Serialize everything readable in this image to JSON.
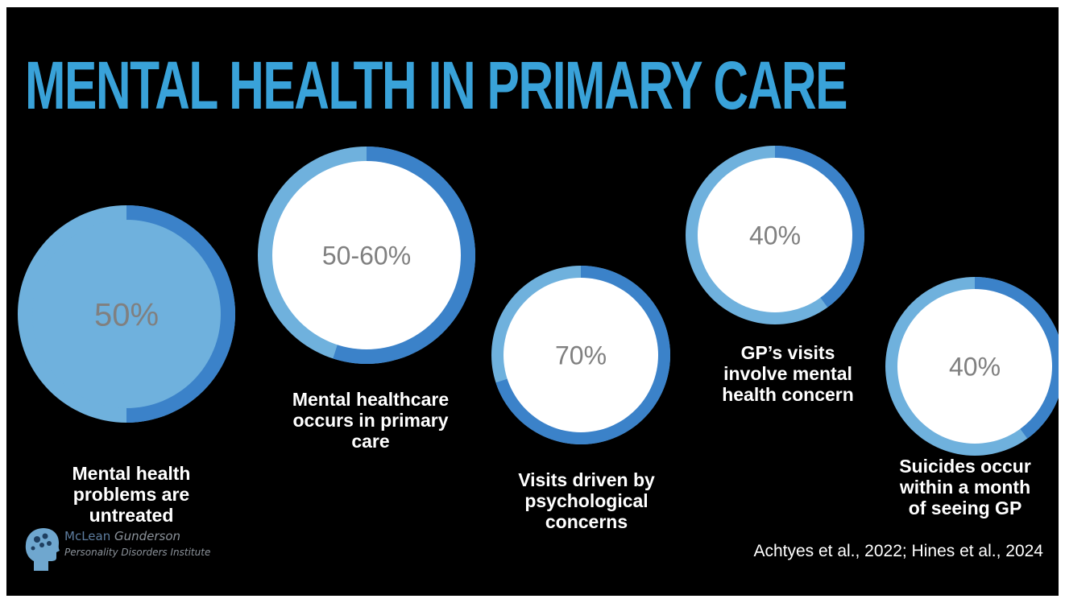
{
  "slide": {
    "title": "MENTAL HEALTH IN PRIMARY CARE",
    "citation": "Achtyes et al., 2022; Hines et al., 2024"
  },
  "logo": {
    "name_part1": "McLean",
    "name_part2": "Gunderson",
    "subtitle": "Personality Disorders Institute",
    "icon": "brain-head-icon"
  },
  "colors": {
    "title": "#39a2d9",
    "ring_dark": "#3b82c9",
    "ring_light": "#6fb1dd",
    "center_fill": "#ffffff",
    "center_text": "#808080",
    "label_text": "#ffffff",
    "background": "#000000"
  },
  "chart_data": {
    "type": "pie",
    "items": [
      {
        "value_label": "50%",
        "value": 50,
        "label": [
          "Mental health",
          "problems are",
          "untreated"
        ]
      },
      {
        "value_label": "50-60%",
        "value": 55,
        "label": [
          "Mental healthcare",
          "occurs in primary",
          "care"
        ]
      },
      {
        "value_label": "70%",
        "value": 70,
        "label": [
          "Visits driven by",
          "psychological",
          "concerns"
        ]
      },
      {
        "value_label": "40%",
        "value": 40,
        "label": [
          "GP’s visits",
          "involve mental",
          "health concern"
        ]
      },
      {
        "value_label": "40%",
        "value": 40,
        "label": [
          "Suicides occur",
          "within a month",
          "of seeing GP"
        ]
      }
    ]
  }
}
